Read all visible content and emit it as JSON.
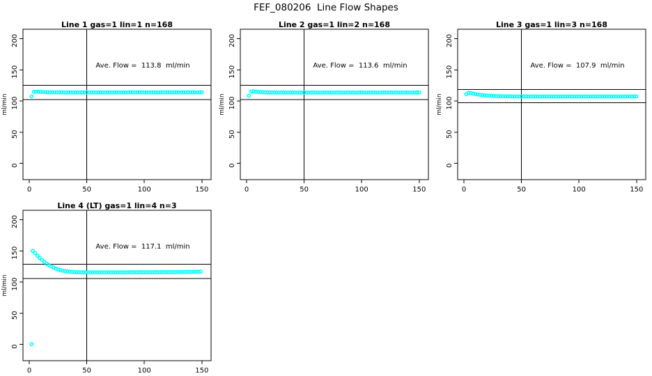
{
  "figure": {
    "title": "FEF_080206  Line Flow Shapes",
    "background": "#ffffff",
    "point_color": "#00ffff",
    "axis_color": "#000000"
  },
  "chart_data": [
    {
      "type": "scatter",
      "panel": 1,
      "title": "Line 1 gas=1 lin=1 n=168",
      "annotation": "Ave. Flow =  113.8  ml/min",
      "ave_flow": 113.8,
      "xlabel": "",
      "ylabel": "ml/min",
      "xticks": [
        0,
        50,
        100,
        150
      ],
      "yticks": [
        0,
        50,
        100,
        150,
        200
      ],
      "xlim": [
        -5.5,
        158
      ],
      "ylim": [
        -26,
        215
      ],
      "vline_x": 50,
      "hlines": [
        125.2,
        102.4
      ],
      "grid": false,
      "marker": "open-circle",
      "x": [
        2,
        4,
        6,
        8,
        10,
        12,
        14,
        16,
        18,
        20,
        22,
        24,
        26,
        28,
        30,
        32,
        34,
        36,
        38,
        40,
        42,
        44,
        46,
        48,
        50,
        52,
        54,
        56,
        58,
        60,
        62,
        64,
        66,
        68,
        70,
        72,
        74,
        76,
        78,
        80,
        82,
        84,
        86,
        88,
        90,
        92,
        94,
        96,
        98,
        100,
        102,
        104,
        106,
        108,
        110,
        112,
        114,
        116,
        118,
        120,
        122,
        124,
        126,
        128,
        130,
        132,
        134,
        136,
        138,
        140,
        142,
        144,
        146,
        148,
        150
      ],
      "y": [
        107.5,
        114.6,
        115.0,
        114.8,
        114.5,
        114.3,
        114.2,
        114.1,
        114.0,
        113.9,
        113.9,
        114.0,
        113.8,
        113.9,
        113.8,
        113.7,
        113.9,
        113.8,
        113.8,
        113.7,
        113.8,
        113.9,
        113.8,
        113.7,
        113.8,
        113.8,
        113.9,
        113.8,
        113.7,
        113.8,
        113.8,
        113.7,
        113.9,
        113.8,
        113.8,
        113.7,
        113.8,
        113.9,
        113.8,
        113.8,
        113.7,
        113.8,
        113.8,
        113.9,
        113.8,
        113.7,
        113.8,
        113.8,
        113.9,
        113.8,
        113.7,
        113.8,
        113.9,
        113.8,
        113.8,
        113.7,
        113.8,
        113.8,
        113.9,
        113.8,
        113.8,
        113.7,
        113.9,
        113.8,
        113.8,
        113.9,
        113.8,
        113.7,
        113.8,
        113.9,
        113.8,
        113.8,
        113.9,
        113.8,
        114.0
      ]
    },
    {
      "type": "scatter",
      "panel": 2,
      "title": "Line 2 gas=1 lin=2 n=168",
      "annotation": "Ave. Flow =  113.6  ml/min",
      "ave_flow": 113.6,
      "xlabel": "",
      "ylabel": "ml/min",
      "xticks": [
        0,
        50,
        100,
        150
      ],
      "yticks": [
        0,
        50,
        100,
        150,
        200
      ],
      "xlim": [
        -5.5,
        158
      ],
      "ylim": [
        -26,
        215
      ],
      "vline_x": 50,
      "hlines": [
        125.0,
        102.2
      ],
      "grid": false,
      "marker": "open-circle",
      "x": [
        2,
        4,
        6,
        8,
        10,
        12,
        14,
        16,
        18,
        20,
        22,
        24,
        26,
        28,
        30,
        32,
        34,
        36,
        38,
        40,
        42,
        44,
        46,
        48,
        50,
        52,
        54,
        56,
        58,
        60,
        62,
        64,
        66,
        68,
        70,
        72,
        74,
        76,
        78,
        80,
        82,
        84,
        86,
        88,
        90,
        92,
        94,
        96,
        98,
        100,
        102,
        104,
        106,
        108,
        110,
        112,
        114,
        116,
        118,
        120,
        122,
        124,
        126,
        128,
        130,
        132,
        134,
        136,
        138,
        140,
        142,
        144,
        146,
        148,
        150
      ],
      "y": [
        108.5,
        115.2,
        115.5,
        115.1,
        114.6,
        114.3,
        114.1,
        113.9,
        113.8,
        113.7,
        113.6,
        113.7,
        113.6,
        113.5,
        113.7,
        113.6,
        113.6,
        113.5,
        113.6,
        113.7,
        113.6,
        113.5,
        113.6,
        113.6,
        113.7,
        113.6,
        113.5,
        113.6,
        113.7,
        113.6,
        113.6,
        113.5,
        113.6,
        113.6,
        113.7,
        113.6,
        113.5,
        113.6,
        113.6,
        113.7,
        113.6,
        113.5,
        113.6,
        113.7,
        113.6,
        113.6,
        113.5,
        113.6,
        113.6,
        113.7,
        113.6,
        113.5,
        113.6,
        113.6,
        113.7,
        113.6,
        113.5,
        113.6,
        113.7,
        113.6,
        113.6,
        113.5,
        113.6,
        113.6,
        113.7,
        113.6,
        113.5,
        113.6,
        113.6,
        113.7,
        113.6,
        113.5,
        113.6,
        113.7,
        113.8
      ]
    },
    {
      "type": "scatter",
      "panel": 3,
      "title": "Line 3 gas=1 lin=3 n=168",
      "annotation": "Ave. Flow =  107.9  ml/min",
      "ave_flow": 107.9,
      "xlabel": "",
      "ylabel": "ml/min",
      "xticks": [
        0,
        50,
        100,
        150
      ],
      "yticks": [
        0,
        50,
        100,
        150,
        200
      ],
      "xlim": [
        -5.5,
        158
      ],
      "ylim": [
        -26,
        215
      ],
      "vline_x": 50,
      "hlines": [
        118.7,
        97.1
      ],
      "grid": false,
      "marker": "open-circle",
      "x": [
        2,
        4,
        6,
        8,
        10,
        12,
        14,
        16,
        18,
        20,
        22,
        24,
        26,
        28,
        30,
        32,
        34,
        36,
        38,
        40,
        42,
        44,
        46,
        48,
        50,
        52,
        54,
        56,
        58,
        60,
        62,
        64,
        66,
        68,
        70,
        72,
        74,
        76,
        78,
        80,
        82,
        84,
        86,
        88,
        90,
        92,
        94,
        96,
        98,
        100,
        102,
        104,
        106,
        108,
        110,
        112,
        114,
        116,
        118,
        120,
        122,
        124,
        126,
        128,
        130,
        132,
        134,
        136,
        138,
        140,
        142,
        144,
        146,
        148,
        150
      ],
      "y": [
        110.8,
        113.2,
        112.6,
        111.8,
        111.1,
        110.5,
        110.0,
        109.5,
        109.1,
        108.8,
        108.5,
        108.3,
        108.1,
        107.9,
        107.8,
        107.7,
        107.6,
        107.5,
        107.5,
        107.4,
        107.4,
        107.3,
        107.4,
        107.3,
        107.3,
        107.4,
        107.3,
        107.2,
        107.3,
        107.3,
        107.4,
        107.3,
        107.2,
        107.3,
        107.3,
        107.2,
        107.3,
        107.4,
        107.3,
        107.2,
        107.3,
        107.3,
        107.2,
        107.3,
        107.3,
        107.4,
        107.3,
        107.2,
        107.3,
        107.3,
        107.2,
        107.3,
        107.4,
        107.3,
        107.2,
        107.3,
        107.3,
        107.2,
        107.3,
        107.3,
        107.4,
        107.3,
        107.2,
        107.3,
        107.3,
        107.2,
        107.3,
        107.4,
        107.3,
        107.3,
        107.2,
        107.3,
        107.3,
        107.4,
        107.4
      ]
    },
    {
      "type": "scatter",
      "panel": 4,
      "title": "Line 4 (LT) gas=1 lin=4 n=3",
      "annotation": "Ave. Flow =  117.1  ml/min",
      "ave_flow": 117.1,
      "xlabel": "",
      "ylabel": "ml/min",
      "xticks": [
        0,
        50,
        100,
        150
      ],
      "yticks": [
        0,
        50,
        100,
        150,
        200
      ],
      "xlim": [
        -5.5,
        158
      ],
      "ylim": [
        -26,
        215
      ],
      "vline_x": 50,
      "hlines": [
        128.8,
        105.4
      ],
      "grid": false,
      "marker": "open-circle",
      "x": [
        2,
        3,
        5,
        7,
        9,
        11,
        13,
        15,
        17,
        19,
        21,
        23,
        25,
        27,
        29,
        31,
        33,
        35,
        37,
        39,
        41,
        43,
        45,
        47,
        49,
        51,
        53,
        55,
        57,
        59,
        61,
        63,
        65,
        67,
        69,
        71,
        73,
        75,
        77,
        79,
        81,
        83,
        85,
        87,
        89,
        91,
        93,
        95,
        97,
        99,
        101,
        103,
        105,
        107,
        109,
        111,
        113,
        115,
        117,
        119,
        121,
        123,
        125,
        127,
        129,
        131,
        133,
        135,
        137,
        139,
        141,
        143,
        145,
        147,
        149
      ],
      "y": [
        0.5,
        150.0,
        146.5,
        142.5,
        138.8,
        135.4,
        132.3,
        129.6,
        127.2,
        125.1,
        123.2,
        121.6,
        120.2,
        119.1,
        118.2,
        117.5,
        117.0,
        116.6,
        116.3,
        116.0,
        115.9,
        115.8,
        115.7,
        115.7,
        115.6,
        115.6,
        115.6,
        115.7,
        115.6,
        115.6,
        115.7,
        115.6,
        115.6,
        115.7,
        115.7,
        115.6,
        115.6,
        115.7,
        115.6,
        115.6,
        115.7,
        115.6,
        115.7,
        115.7,
        115.6,
        115.6,
        115.7,
        115.7,
        115.8,
        115.7,
        115.7,
        115.8,
        115.7,
        115.8,
        115.8,
        115.9,
        115.8,
        115.9,
        115.9,
        116.0,
        115.9,
        116.0,
        116.0,
        116.1,
        116.0,
        116.1,
        116.1,
        116.2,
        116.2,
        116.3,
        116.3,
        116.4,
        116.5,
        116.6,
        116.8
      ]
    }
  ]
}
